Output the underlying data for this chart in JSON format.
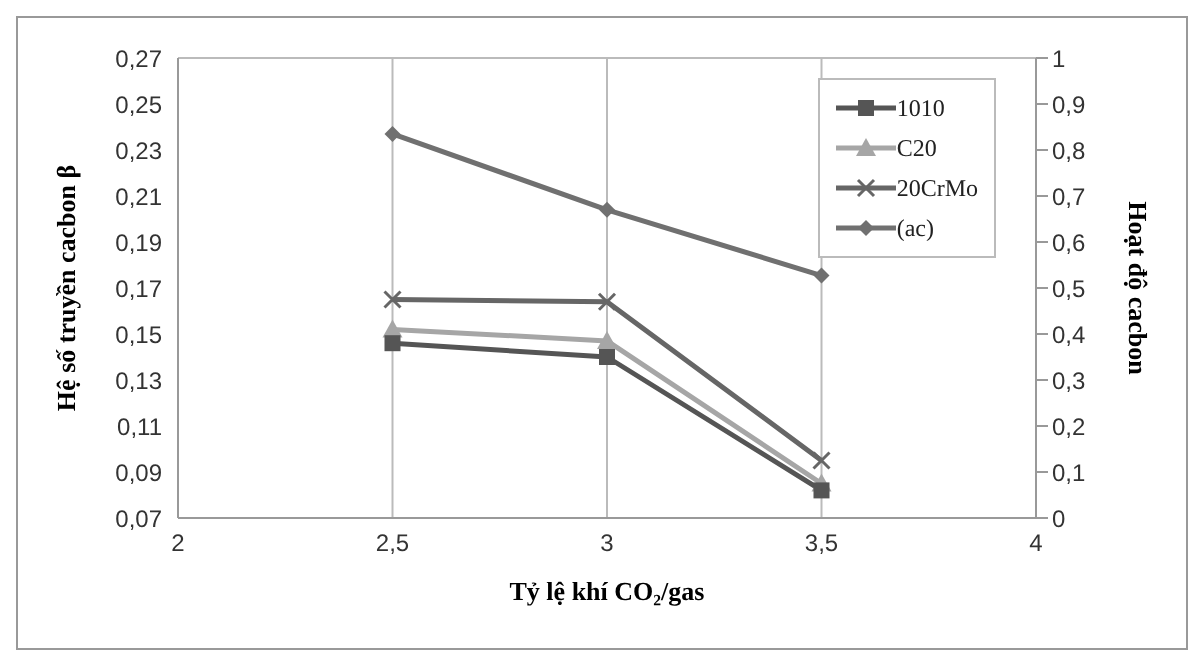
{
  "chart_data": {
    "type": "line",
    "xlabel": "Tỷ lệ khí CO₂/gas",
    "ylabel": "Hệ số truyền cacbon β",
    "y2label": "Hoạt độ cacbon",
    "x": [
      2.5,
      3,
      3.5
    ],
    "series": [
      {
        "name": "1010",
        "color": "#555555",
        "marker": "square",
        "values": [
          0.146,
          0.14,
          0.082
        ]
      },
      {
        "name": "C20",
        "color": "#a6a6a6",
        "marker": "triangle",
        "values": [
          0.152,
          0.147,
          0.085
        ]
      },
      {
        "name": "20CrMo",
        "color": "#666666",
        "marker": "cross",
        "values": [
          0.165,
          0.164,
          0.095
        ]
      },
      {
        "name": "(ac)",
        "color": "#707070",
        "marker": "diamond",
        "axis": "y2",
        "values": [
          0.835,
          0.67,
          0.527
        ]
      }
    ],
    "xlim": [
      2,
      4
    ],
    "xticks": [
      2,
      {
        "value": 2.5,
        "label": "2,5"
      },
      3,
      {
        "value": 3.5,
        "label": "3,5"
      },
      4
    ],
    "ylim": [
      0.07,
      0.27
    ],
    "yticks": [
      {
        "value": 0.07,
        "label": "0,07"
      },
      {
        "value": 0.09,
        "label": "0,09"
      },
      {
        "value": 0.11,
        "label": "0,11"
      },
      {
        "value": 0.13,
        "label": "0,13"
      },
      {
        "value": 0.15,
        "label": "0,15"
      },
      {
        "value": 0.17,
        "label": "0,17"
      },
      {
        "value": 0.19,
        "label": "0,19"
      },
      {
        "value": 0.21,
        "label": "0,21"
      },
      {
        "value": 0.23,
        "label": "0,23"
      },
      {
        "value": 0.25,
        "label": "0,25"
      },
      {
        "value": 0.27,
        "label": "0,27"
      }
    ],
    "y2lim": [
      0,
      1
    ],
    "y2ticks": [
      0,
      {
        "value": 0.1,
        "label": "0,1"
      },
      {
        "value": 0.2,
        "label": "0,2"
      },
      {
        "value": 0.3,
        "label": "0,3"
      },
      {
        "value": 0.4,
        "label": "0,4"
      },
      {
        "value": 0.5,
        "label": "0,5"
      },
      {
        "value": 0.6,
        "label": "0,6"
      },
      {
        "value": 0.7,
        "label": "0,7"
      },
      {
        "value": 0.8,
        "label": "0,8"
      },
      {
        "value": 0.9,
        "label": "0,9"
      },
      1
    ],
    "grid": true,
    "legend": "top right",
    "line_style": "solid"
  }
}
